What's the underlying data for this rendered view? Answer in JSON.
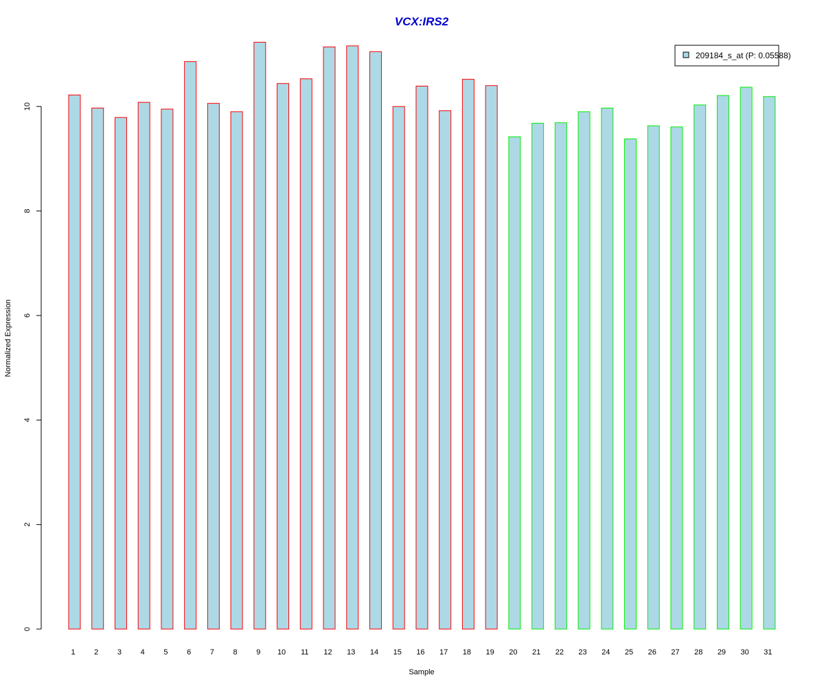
{
  "colors": {
    "title": "#0000cc",
    "bar_fill": "#add8e6",
    "group1_border": "#ff0000",
    "group2_border": "#00ee00",
    "axis": "#000000"
  },
  "chart_data": {
    "type": "bar",
    "title": "VCX:IRS2",
    "xlabel": "Sample",
    "ylabel": "Normalized Expression",
    "ylim": [
      0,
      11.25
    ],
    "yticks": [
      0,
      2,
      4,
      6,
      8,
      10
    ],
    "grid": false,
    "legend_position": "top-right",
    "legend": [
      {
        "label": "209184_s_at (P: 0.05588)",
        "color": "#add8e6"
      }
    ],
    "categories": [
      "1",
      "2",
      "3",
      "4",
      "5",
      "6",
      "7",
      "8",
      "9",
      "10",
      "11",
      "12",
      "13",
      "14",
      "15",
      "16",
      "17",
      "18",
      "19",
      "20",
      "21",
      "22",
      "23",
      "24",
      "25",
      "26",
      "27",
      "28",
      "29",
      "30",
      "31"
    ],
    "series": [
      {
        "values": [
          10.22,
          9.97,
          9.79,
          10.08,
          9.95,
          10.86,
          10.06,
          9.9,
          11.23,
          10.44,
          10.53,
          11.14,
          11.16,
          11.05,
          10.0,
          10.39,
          9.92,
          10.52,
          10.4,
          9.42,
          9.68,
          9.69,
          9.9,
          9.97,
          9.38,
          9.63,
          9.61,
          10.03,
          10.21,
          10.37,
          10.19
        ],
        "border_colors": [
          "#ff0000",
          "#ff0000",
          "#ff0000",
          "#ff0000",
          "#ff0000",
          "#ff0000",
          "#ff0000",
          "#ff0000",
          "#ff0000",
          "#ff0000",
          "#ff0000",
          "#ff0000",
          "#ff0000",
          "#ff0000",
          "#ff0000",
          "#ff0000",
          "#ff0000",
          "#ff0000",
          "#ff0000",
          "#00ee00",
          "#00ee00",
          "#00ee00",
          "#00ee00",
          "#00ee00",
          "#00ee00",
          "#00ee00",
          "#00ee00",
          "#00ee00",
          "#00ee00",
          "#00ee00",
          "#00ee00"
        ]
      }
    ]
  }
}
